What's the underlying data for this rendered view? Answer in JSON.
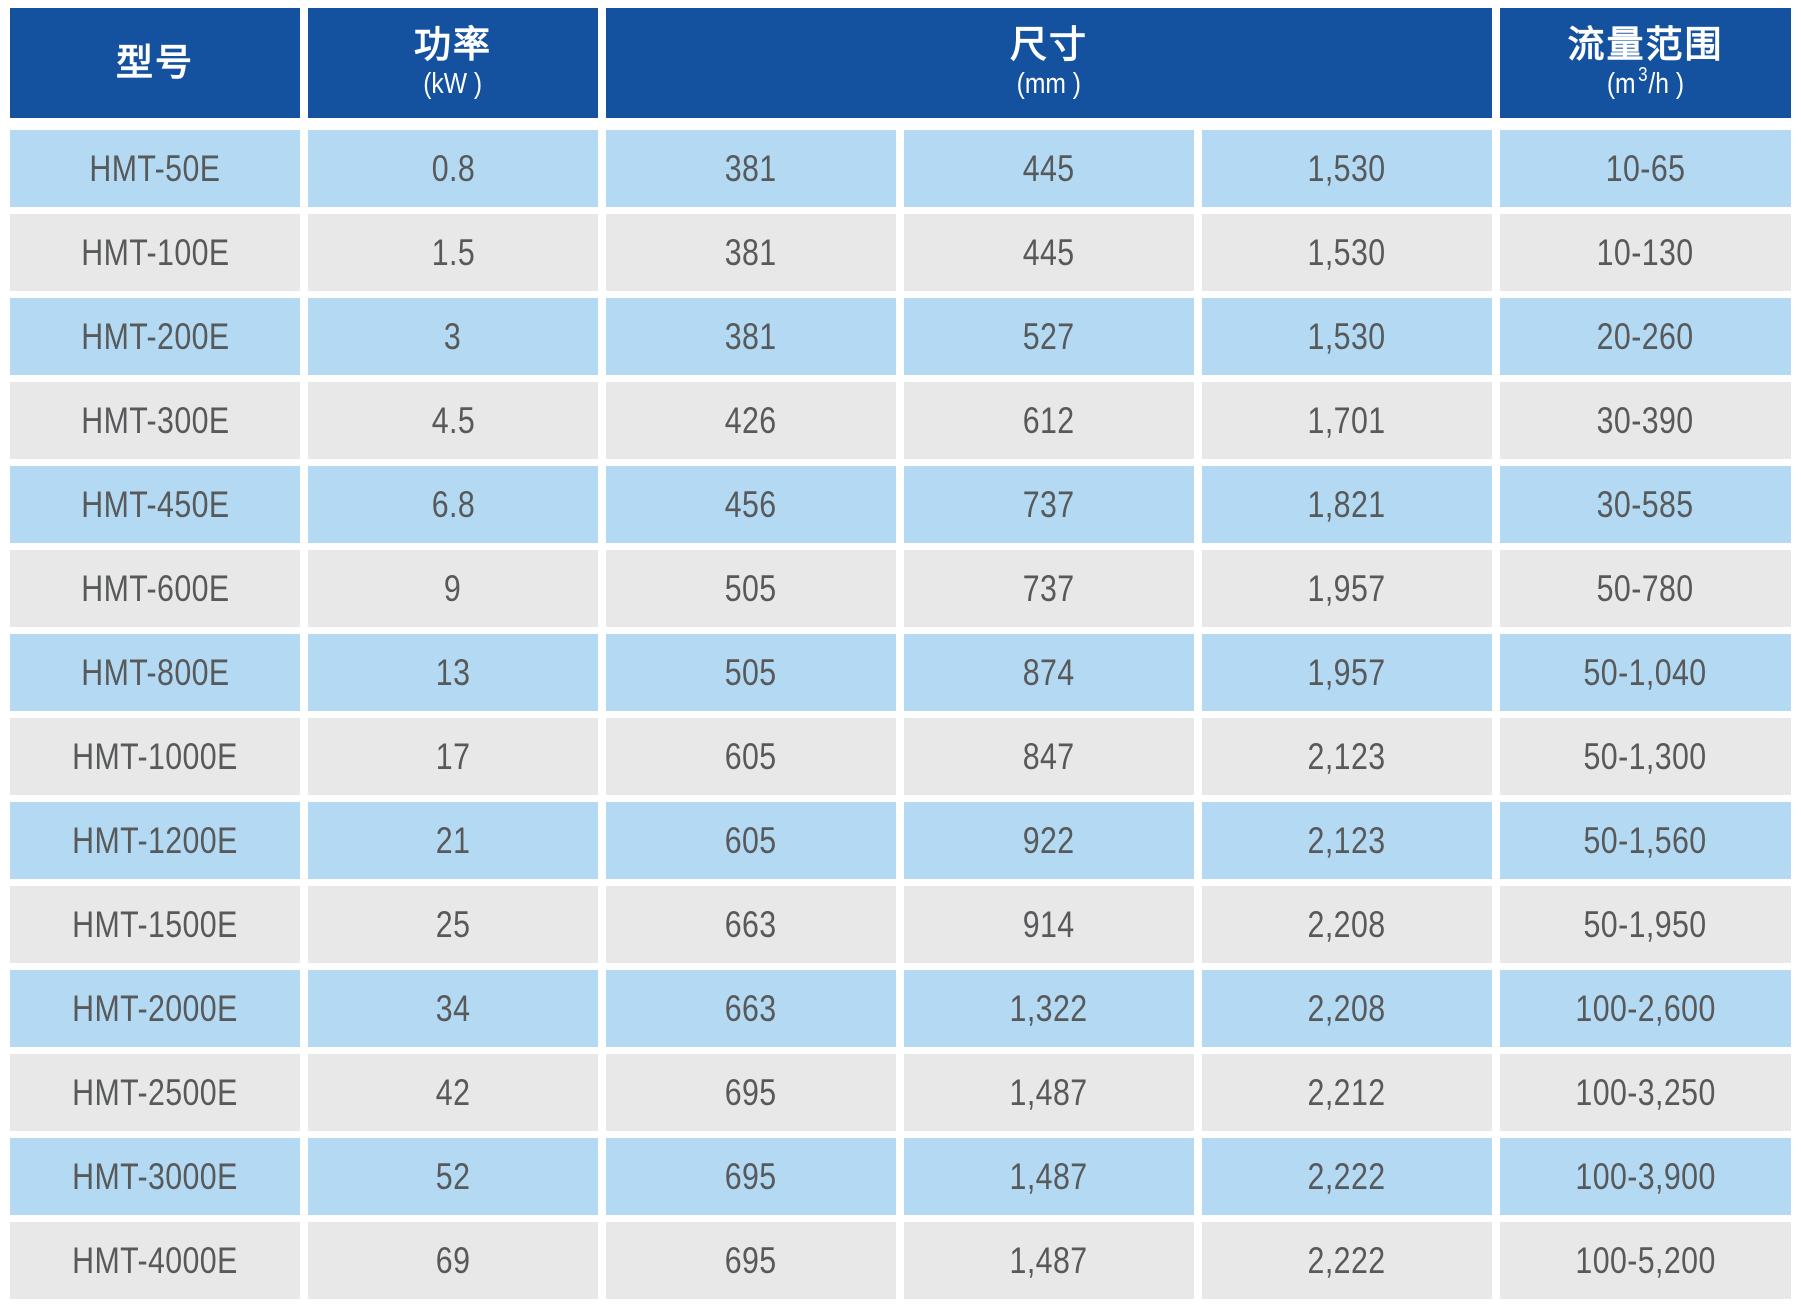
{
  "table": {
    "header": {
      "model": {
        "title": "型号"
      },
      "power": {
        "title": "功率",
        "unit": "(kW )"
      },
      "dims": {
        "title": "尺寸",
        "unit": "(mm )"
      },
      "flow": {
        "title": "流量范围",
        "unit_pre": "(m",
        "unit_sup": "3",
        "unit_post": "/h )"
      }
    },
    "rows": [
      {
        "model": "HMT-50E",
        "power": "0.8",
        "dims": [
          "381",
          "445",
          "1,530"
        ],
        "flow": "10-65"
      },
      {
        "model": "HMT-100E",
        "power": "1.5",
        "dims": [
          "381",
          "445",
          "1,530"
        ],
        "flow": "10-130"
      },
      {
        "model": "HMT-200E",
        "power": "3",
        "dims": [
          "381",
          "527",
          "1,530"
        ],
        "flow": "20-260"
      },
      {
        "model": "HMT-300E",
        "power": "4.5",
        "dims": [
          "426",
          "612",
          "1,701"
        ],
        "flow": "30-390"
      },
      {
        "model": "HMT-450E",
        "power": "6.8",
        "dims": [
          "456",
          "737",
          "1,821"
        ],
        "flow": "30-585"
      },
      {
        "model": "HMT-600E",
        "power": "9",
        "dims": [
          "505",
          "737",
          "1,957"
        ],
        "flow": "50-780"
      },
      {
        "model": "HMT-800E",
        "power": "13",
        "dims": [
          "505",
          "874",
          "1,957"
        ],
        "flow": "50-1,040"
      },
      {
        "model": "HMT-1000E",
        "power": "17",
        "dims": [
          "605",
          "847",
          "2,123"
        ],
        "flow": "50-1,300"
      },
      {
        "model": "HMT-1200E",
        "power": "21",
        "dims": [
          "605",
          "922",
          "2,123"
        ],
        "flow": "50-1,560"
      },
      {
        "model": "HMT-1500E",
        "power": "25",
        "dims": [
          "663",
          "914",
          "2,208"
        ],
        "flow": "50-1,950"
      },
      {
        "model": "HMT-2000E",
        "power": "34",
        "dims": [
          "663",
          "1,322",
          "2,208"
        ],
        "flow": "100-2,600"
      },
      {
        "model": "HMT-2500E",
        "power": "42",
        "dims": [
          "695",
          "1,487",
          "2,212"
        ],
        "flow": "100-3,250"
      },
      {
        "model": "HMT-3000E",
        "power": "52",
        "dims": [
          "695",
          "1,487",
          "2,222"
        ],
        "flow": "100-3,900"
      },
      {
        "model": "HMT-4000E",
        "power": "69",
        "dims": [
          "695",
          "1,487",
          "2,222"
        ],
        "flow": "100-5,200"
      }
    ],
    "colors": {
      "header_bg": "#14519E",
      "row_blue": "#B3DAF2",
      "row_gray": "#E8E8E8",
      "text": "#58595B",
      "header_text": "#FFFFFF"
    }
  }
}
